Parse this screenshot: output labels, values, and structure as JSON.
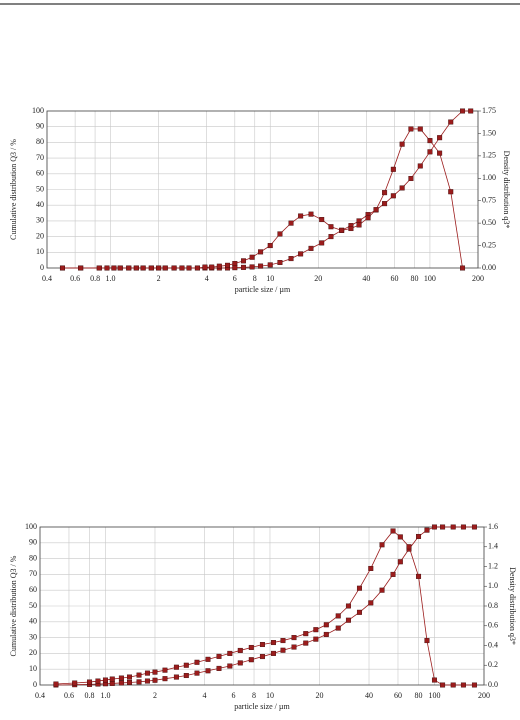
{
  "chart_data": [
    {
      "type": "line",
      "log_x": true,
      "grid": true,
      "xlabel": "particle size / µm",
      "ylabel": "Cumulative distribution Q3 / %",
      "y2label": "Density distribution q3*",
      "x": [
        0.5,
        0.65,
        0.85,
        0.95,
        1.05,
        1.15,
        1.3,
        1.45,
        1.6,
        1.8,
        2.0,
        2.2,
        2.5,
        2.8,
        3.1,
        3.5,
        3.9,
        4.3,
        4.8,
        5.4,
        6,
        6.8,
        7.7,
        8.7,
        10,
        11.5,
        13.5,
        15.5,
        18,
        21,
        24,
        28,
        32,
        36,
        41,
        46,
        52,
        59,
        67,
        76,
        87,
        100,
        115,
        135,
        160,
        180
      ],
      "series": [
        {
          "color": "#9b1c1c",
          "values": [
            0,
            0,
            0,
            0,
            0,
            0,
            0,
            0,
            0,
            0,
            0,
            0,
            0,
            0,
            0,
            0,
            0,
            0,
            0,
            0,
            0.2,
            0.4,
            0.7,
            1.2,
            2,
            3.5,
            6,
            9,
            12.5,
            16,
            20,
            24,
            27,
            30,
            34,
            37,
            41,
            46,
            51,
            57,
            65,
            74,
            83,
            93,
            100,
            100
          ]
        },
        {
          "color": "#9b1c1c",
          "axis": "y2",
          "values": [
            0,
            0,
            0,
            0,
            0,
            0,
            0,
            0,
            0,
            0,
            0,
            0,
            0,
            0,
            0,
            0,
            0.01,
            0.01,
            0.02,
            0.03,
            0.05,
            0.08,
            0.12,
            0.18,
            0.25,
            0.38,
            0.5,
            0.58,
            0.6,
            0.54,
            0.46,
            0.42,
            0.44,
            0.48,
            0.56,
            0.65,
            0.84,
            1.1,
            1.38,
            1.55,
            1.55,
            1.42,
            1.28,
            0.85,
            0,
            null
          ]
        }
      ],
      "xlim": [
        0.4,
        200
      ],
      "xticks": [
        0.4,
        0.6,
        0.8,
        {
          "value": 1,
          "label": "1.0"
        },
        2,
        4,
        6,
        8,
        10,
        20,
        40,
        60,
        80,
        100,
        200
      ],
      "ylim": [
        0,
        100
      ],
      "yticks": [
        0,
        10,
        20,
        30,
        40,
        50,
        60,
        70,
        80,
        90,
        100
      ],
      "y2lim": [
        0,
        1.75
      ],
      "y2ticks": [
        {
          "value": 0,
          "label": "0.00"
        },
        {
          "value": 0.25,
          "label": "0.25"
        },
        {
          "value": 0.5,
          "label": "0.50"
        },
        {
          "value": 0.75,
          "label": "0.75"
        },
        {
          "value": 1,
          "label": "1.00"
        },
        {
          "value": 1.25,
          "label": "1.25"
        },
        {
          "value": 1.5,
          "label": "1.50"
        },
        1.75
      ]
    },
    {
      "type": "line",
      "log_x": true,
      "grid": true,
      "xlabel": "particle size / µm",
      "ylabel": "Cumulative distribution Q3 / %",
      "y2label": "Density distribution q3*",
      "x": [
        0.5,
        0.65,
        0.8,
        0.9,
        1.0,
        1.1,
        1.25,
        1.4,
        1.6,
        1.8,
        2.0,
        2.3,
        2.7,
        3.1,
        3.6,
        4.2,
        4.9,
        5.7,
        6.6,
        7.7,
        9,
        10.5,
        12,
        14,
        16.5,
        19,
        22,
        26,
        30,
        35,
        41,
        48,
        56,
        62,
        70,
        80,
        90,
        100,
        112,
        130,
        150,
        175
      ],
      "series": [
        {
          "color": "#9b1c1c",
          "values": [
            0,
            0.2,
            0.4,
            0.6,
            0.8,
            1,
            1.3,
            1.6,
            2,
            2.5,
            3,
            4,
            5,
            6,
            7.5,
            9,
            10.5,
            12,
            14,
            16,
            18,
            20,
            22,
            24,
            26.5,
            29,
            32,
            36,
            41,
            46,
            52,
            60,
            70,
            78,
            86,
            94,
            98,
            100,
            100,
            100,
            100,
            100
          ]
        },
        {
          "color": "#9b1c1c",
          "axis": "y2",
          "values": [
            0.01,
            0.02,
            0.03,
            0.04,
            0.05,
            0.06,
            0.07,
            0.08,
            0.1,
            0.12,
            0.13,
            0.15,
            0.18,
            0.2,
            0.23,
            0.26,
            0.29,
            0.32,
            0.35,
            0.38,
            0.41,
            0.43,
            0.45,
            0.48,
            0.52,
            0.56,
            0.61,
            0.7,
            0.8,
            0.98,
            1.18,
            1.42,
            1.56,
            1.5,
            1.4,
            1.1,
            0.45,
            0.05,
            0,
            0,
            0,
            0
          ]
        }
      ],
      "xlim": [
        0.4,
        200
      ],
      "xticks": [
        0.4,
        0.6,
        0.8,
        {
          "value": 1,
          "label": "1.0"
        },
        2,
        4,
        6,
        8,
        10,
        20,
        40,
        60,
        80,
        100,
        200
      ],
      "ylim": [
        0,
        100
      ],
      "yticks": [
        0,
        10,
        20,
        30,
        40,
        50,
        60,
        70,
        80,
        90,
        100
      ],
      "y2lim": [
        0,
        1.6
      ],
      "y2ticks": [
        {
          "value": 0,
          "label": "0.0"
        },
        0.2,
        0.4,
        0.6,
        0.8,
        {
          "value": 1,
          "label": "1.0"
        },
        1.2,
        1.4,
        1.6
      ]
    }
  ]
}
